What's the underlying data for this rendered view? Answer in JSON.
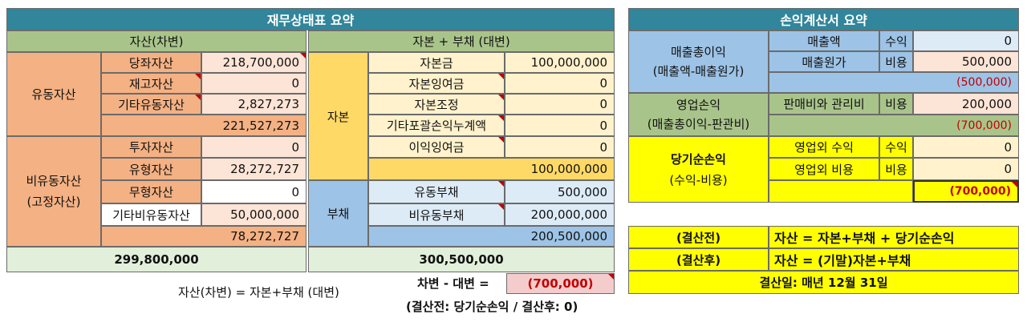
{
  "balance_sheet": {
    "title": "재무상태표 요약",
    "assets_header": "자산(차변)",
    "equity_liab_header": "자본 + 부채 (대변)",
    "current_assets": {
      "label": "유동자산",
      "items": [
        {
          "name": "당좌자산",
          "value": "218,700,000"
        },
        {
          "name": "재고자산",
          "value": "0"
        },
        {
          "name": "기타유동자산",
          "value": "2,827,273"
        }
      ],
      "subtotal": "221,527,273"
    },
    "noncurrent_assets": {
      "label": "비유동자산",
      "label2": "(고정자산)",
      "items": [
        {
          "name": "투자자산",
          "value": "0"
        },
        {
          "name": "유형자산",
          "value": "28,272,727"
        },
        {
          "name": "무형자산",
          "value": "0"
        },
        {
          "name": "기타비유동자산",
          "value": "50,000,000"
        }
      ],
      "subtotal": "78,272,727"
    },
    "equity": {
      "label": "자본",
      "items": [
        {
          "name": "자본금",
          "value": "100,000,000"
        },
        {
          "name": "자본잉여금",
          "value": "0"
        },
        {
          "name": "자본조정",
          "value": "0"
        },
        {
          "name": "기타포괄손익누계액",
          "value": "0"
        },
        {
          "name": "이익잉여금",
          "value": "0"
        }
      ],
      "subtotal": "100,000,000"
    },
    "liabilities": {
      "label": "부채",
      "items": [
        {
          "name": "유동부채",
          "value": "500,000"
        },
        {
          "name": "비유동부채",
          "value": "200,000,000"
        }
      ],
      "subtotal": "200,500,000"
    },
    "assets_total": "299,800,000",
    "equity_liab_total": "300,500,000",
    "equation": "자산(차변) = 자본+부채 (대변)",
    "diff_label": "차변 - 대변 =",
    "diff_value": "(700,000)",
    "diff_note": "(결산전: 당기순손익 / 결산후: 0)"
  },
  "income_statement": {
    "title": "손익계산서 요약",
    "gross_profit": {
      "label": "매출총이익",
      "label2": "(매출액-매출원가)",
      "rows": [
        {
          "name": "매출액",
          "type": "수익",
          "value": "0"
        },
        {
          "name": "매출원가",
          "type": "비용",
          "value": "500,000"
        }
      ],
      "result": "(500,000)"
    },
    "operating": {
      "label": "영업손익",
      "label2": "(매출총이익-판관비)",
      "rows": [
        {
          "name": "판매비와 관리비",
          "type": "비용",
          "value": "200,000"
        }
      ],
      "result": "(700,000)"
    },
    "net": {
      "label": "당기순손익",
      "label2": "(수익-비용)",
      "rows": [
        {
          "name": "영업외 수익",
          "type": "수익",
          "value": "0"
        },
        {
          "name": "영업외 비용",
          "type": "비용",
          "value": "0"
        }
      ],
      "result": "(700,000)"
    }
  },
  "notes": {
    "before_label": "(결산전)",
    "before_eq": "자산 = 자본+부채 + 당기순손익",
    "after_label": "(결산후)",
    "after_eq": "자산 = (기말)자본+부채",
    "closing_date": "결산일: 매년 12월 31일"
  }
}
